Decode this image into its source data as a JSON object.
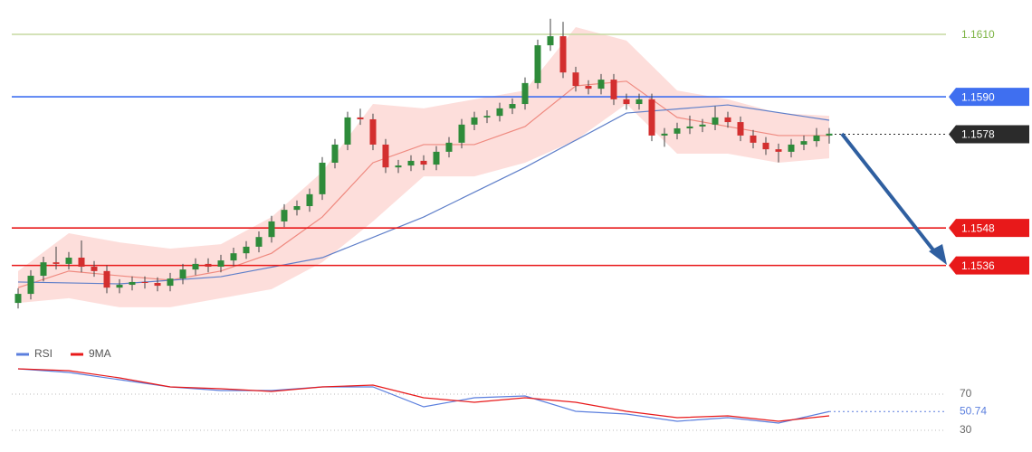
{
  "chart_data": [
    {
      "type": "candlestick",
      "xlim": [
        0,
        64
      ],
      "ylim": [
        1.1511,
        1.1621
      ],
      "up_color": "#2e8b3a",
      "down_color": "#d32f2f",
      "open": [
        1.1524,
        1.15269,
        1.15327,
        1.1537,
        1.15365,
        1.15385,
        1.15356,
        1.15342,
        1.15289,
        1.15298,
        1.15307,
        1.15304,
        1.15295,
        1.15318,
        1.15347,
        1.15365,
        1.15356,
        1.15376,
        1.15399,
        1.1542,
        1.15451,
        1.15501,
        1.15538,
        1.1555,
        1.15588,
        1.15689,
        1.15747,
        1.15834,
        1.15828,
        1.15747,
        1.15674,
        1.1568,
        1.15695,
        1.15683,
        1.15724,
        1.15753,
        1.15811,
        1.15834,
        1.15839,
        1.15863,
        1.15877,
        1.15944,
        1.16065,
        1.16094,
        1.15978,
        1.15935,
        1.15926,
        1.15955,
        1.15892,
        1.15877,
        1.15892,
        1.15776,
        1.15782,
        1.15799,
        1.15805,
        1.15811,
        1.15834,
        1.15819,
        1.15776,
        1.15753,
        1.15732,
        1.15724,
        1.15747,
        1.15758,
        1.15776
      ],
      "high": [
        1.15287,
        1.15345,
        1.15388,
        1.1542,
        1.15403,
        1.1544,
        1.15374,
        1.1536,
        1.15316,
        1.15325,
        1.15325,
        1.15322,
        1.15336,
        1.15365,
        1.15383,
        1.15383,
        1.15394,
        1.15417,
        1.15438,
        1.15469,
        1.15519,
        1.15556,
        1.15568,
        1.15606,
        1.15707,
        1.15765,
        1.15852,
        1.15862,
        1.15846,
        1.15765,
        1.15698,
        1.15713,
        1.15713,
        1.15742,
        1.15771,
        1.15829,
        1.15852,
        1.15857,
        1.15881,
        1.15895,
        1.15962,
        1.16083,
        1.1615,
        1.1614,
        1.15996,
        1.15953,
        1.15973,
        1.15973,
        1.1591,
        1.1591,
        1.1591,
        1.158,
        1.15817,
        1.1584,
        1.15829,
        1.1587,
        1.15852,
        1.15837,
        1.15794,
        1.15771,
        1.1575,
        1.15765,
        1.15776,
        1.158,
        1.158
      ],
      "low": [
        1.15222,
        1.15251,
        1.15309,
        1.15347,
        1.15347,
        1.15338,
        1.15324,
        1.15271,
        1.15271,
        1.1528,
        1.15286,
        1.15277,
        1.15277,
        1.153,
        1.15329,
        1.15338,
        1.15338,
        1.15358,
        1.15381,
        1.15402,
        1.15433,
        1.15483,
        1.1552,
        1.15532,
        1.1557,
        1.15671,
        1.15729,
        1.1581,
        1.15729,
        1.15656,
        1.15656,
        1.15662,
        1.15665,
        1.15665,
        1.15706,
        1.15735,
        1.15793,
        1.15816,
        1.15821,
        1.15845,
        1.15859,
        1.15926,
        1.16047,
        1.1596,
        1.15917,
        1.15908,
        1.15908,
        1.15874,
        1.15859,
        1.15859,
        1.15758,
        1.1574,
        1.15764,
        1.15781,
        1.15787,
        1.15793,
        1.15801,
        1.15758,
        1.15735,
        1.15714,
        1.1569,
        1.15706,
        1.15729,
        1.1574,
        1.1575
      ],
      "close": [
        1.15269,
        1.15327,
        1.1537,
        1.15365,
        1.15385,
        1.15356,
        1.15342,
        1.15289,
        1.15298,
        1.15307,
        1.15304,
        1.15295,
        1.15318,
        1.15347,
        1.15365,
        1.15356,
        1.15376,
        1.15399,
        1.1542,
        1.15451,
        1.15501,
        1.15538,
        1.1555,
        1.15588,
        1.15689,
        1.15747,
        1.15834,
        1.15828,
        1.15747,
        1.15674,
        1.1568,
        1.15695,
        1.15683,
        1.15724,
        1.15753,
        1.15811,
        1.15834,
        1.15839,
        1.15863,
        1.15877,
        1.15944,
        1.16065,
        1.16094,
        1.15978,
        1.15935,
        1.15926,
        1.15955,
        1.15892,
        1.15877,
        1.15892,
        1.15776,
        1.15782,
        1.15799,
        1.15805,
        1.15811,
        1.15834,
        1.15819,
        1.15776,
        1.15753,
        1.15732,
        1.15724,
        1.15747,
        1.15758,
        1.15776,
        1.15782
      ],
      "band": {
        "color": "#fcd3cf",
        "x": [
          0,
          4,
          8,
          12,
          16,
          20,
          24,
          28,
          32,
          36,
          40,
          44,
          48,
          52,
          56,
          60,
          64
        ],
        "upper": [
          1.15342,
          1.15463,
          1.15434,
          1.15414,
          1.15428,
          1.15515,
          1.1566,
          1.15877,
          1.15863,
          1.15892,
          1.1592,
          1.16123,
          1.1608,
          1.1592,
          1.15892,
          1.15848,
          1.15839
        ],
        "lower": [
          1.1524,
          1.15255,
          1.15226,
          1.15226,
          1.15255,
          1.15284,
          1.1537,
          1.15501,
          1.15645,
          1.15645,
          1.15689,
          1.15761,
          1.15877,
          1.15718,
          1.15718,
          1.15689,
          1.15703
        ]
      },
      "overlays": [
        {
          "color": "#ef8a80",
          "x": [
            0,
            4,
            8,
            12,
            16,
            20,
            24,
            28,
            32,
            36,
            40,
            44,
            48,
            52,
            56,
            60,
            64
          ],
          "values": [
            1.15289,
            1.15342,
            1.15327,
            1.15313,
            1.15342,
            1.15399,
            1.15515,
            1.15689,
            1.15747,
            1.15747,
            1.15805,
            1.15935,
            1.1595,
            1.15834,
            1.15805,
            1.15776,
            1.15776
          ]
        },
        {
          "color": "#5f7fc9",
          "x": [
            0,
            8,
            16,
            24,
            32,
            40,
            48,
            56,
            64
          ],
          "values": [
            1.15307,
            1.15301,
            1.15324,
            1.15385,
            1.15515,
            1.15674,
            1.15848,
            1.15874,
            1.15825
          ]
        }
      ],
      "levels": [
        {
          "value": 1.161,
          "label": "1.1610",
          "color": "#c5d9a0",
          "text_color": "#7cb342",
          "box": false,
          "dash": "solid"
        },
        {
          "value": 1.159,
          "label": "1.1590",
          "color": "#3f6ff0",
          "text_color": "#ffffff",
          "box": true,
          "dash": "solid"
        },
        {
          "value": 1.1578,
          "label": "1.1578",
          "color": "#2b2b2b",
          "text_color": "#ffffff",
          "box": true,
          "dash": "dotted"
        },
        {
          "value": 1.1548,
          "label": "1.1548",
          "color": "#e8191a",
          "text_color": "#ffffff",
          "box": true,
          "dash": "solid"
        },
        {
          "value": 1.1536,
          "label": "1.1536",
          "color": "#e8191a",
          "text_color": "#ffffff",
          "box": true,
          "dash": "solid"
        }
      ]
    },
    {
      "type": "line",
      "xlim": [
        0,
        64
      ],
      "ylim": [
        16,
        106
      ],
      "yticks": [
        70,
        30
      ],
      "grid": true,
      "series": [
        {
          "name": "RSI",
          "color": "#5b7fde",
          "x": [
            0,
            4,
            8,
            12,
            16,
            20,
            24,
            28,
            32,
            36,
            40,
            44,
            48,
            52,
            56,
            60,
            64
          ],
          "values": [
            98,
            94,
            86,
            78,
            74,
            74,
            78,
            78,
            56,
            66,
            68,
            51,
            48,
            40,
            44,
            38,
            50.74
          ]
        },
        {
          "name": "9MA",
          "color": "#e8191a",
          "x": [
            0,
            4,
            8,
            12,
            16,
            20,
            24,
            28,
            32,
            36,
            40,
            44,
            48,
            52,
            56,
            60,
            64
          ],
          "values": [
            98,
            96,
            88,
            78,
            76,
            73,
            78,
            80,
            66,
            61,
            66,
            61,
            51,
            44,
            46,
            40,
            46
          ]
        }
      ],
      "marker": 50.74,
      "marker_color": "#5b7fde"
    }
  ]
}
